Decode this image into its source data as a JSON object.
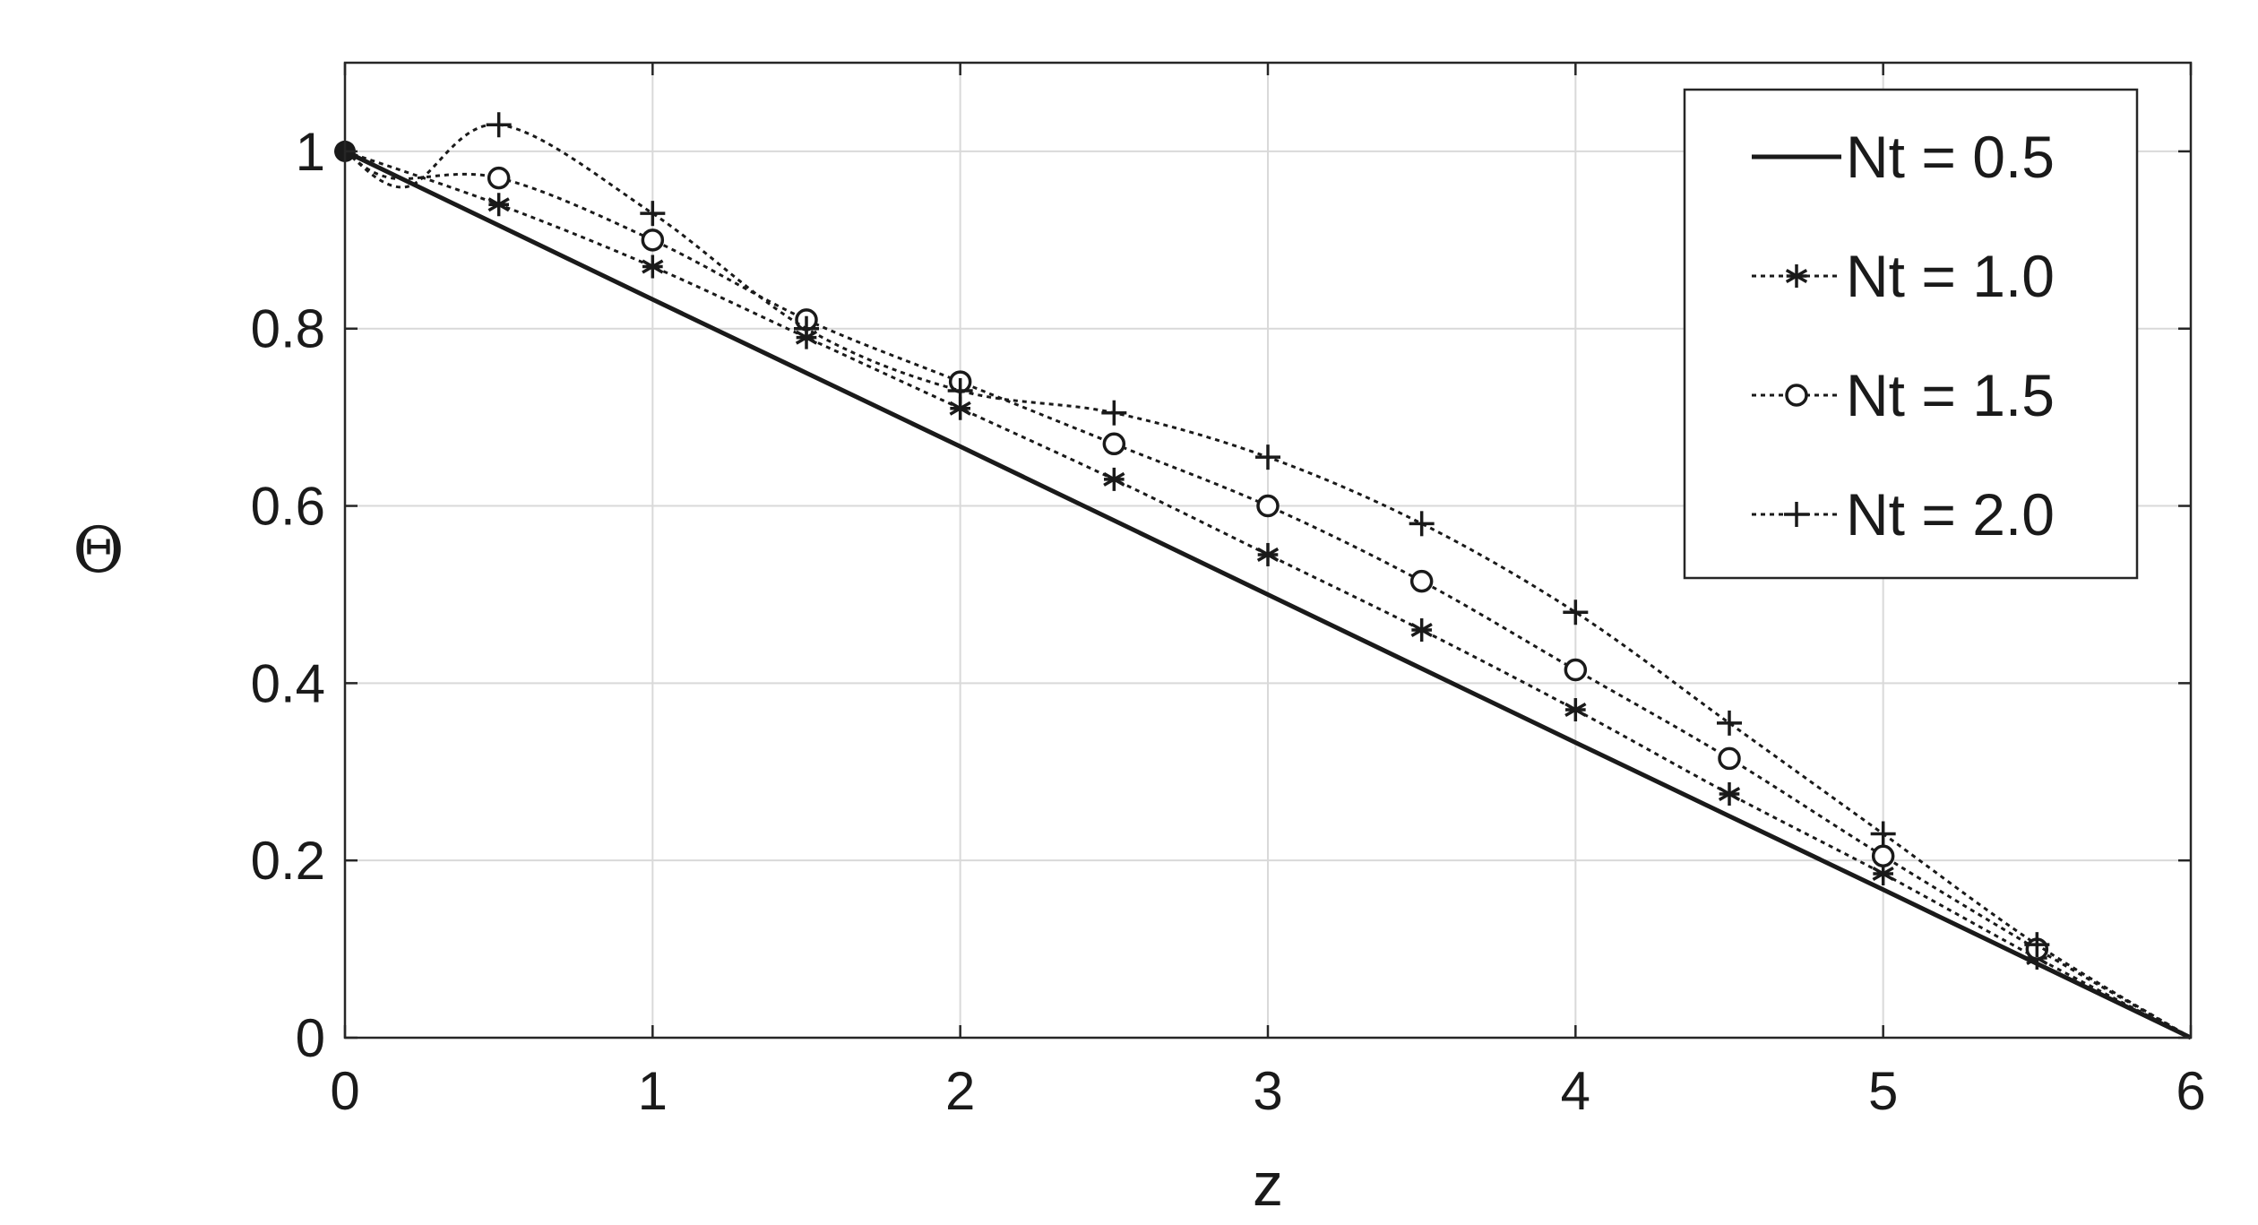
{
  "chart_data": {
    "type": "line",
    "xlabel": "z",
    "ylabel": "Θ",
    "xlim": [
      0,
      6
    ],
    "ylim": [
      0,
      1.1
    ],
    "xticks": [
      "0",
      "1",
      "2",
      "3",
      "4",
      "5",
      "6"
    ],
    "yticks": [
      "0",
      "0.2",
      "0.4",
      "0.6",
      "0.8",
      "1"
    ],
    "grid": true,
    "legend_position": "top-right",
    "series": [
      {
        "name": "Nt = 0.5",
        "marker": "none",
        "line": "solid",
        "x": [
          0,
          1,
          2,
          3,
          4,
          5,
          6
        ],
        "y": [
          1.0,
          0.833,
          0.667,
          0.5,
          0.333,
          0.167,
          0.0
        ],
        "marker_x": [],
        "marker_y": []
      },
      {
        "name": "Nt = 1.0",
        "marker": "asterisk",
        "line": "dotted",
        "x": [
          0,
          0.5,
          1.0,
          1.5,
          2.0,
          2.5,
          3.0,
          3.5,
          4.0,
          4.5,
          5.0,
          5.5,
          6.0
        ],
        "y": [
          1.0,
          0.94,
          0.87,
          0.79,
          0.71,
          0.63,
          0.545,
          0.46,
          0.37,
          0.275,
          0.185,
          0.09,
          0.0
        ],
        "marker_x": [
          0.5,
          1.0,
          1.5,
          2.0,
          2.5,
          3.0,
          3.5,
          4.0,
          4.5,
          5.0,
          5.5
        ],
        "marker_y": [
          0.94,
          0.87,
          0.79,
          0.71,
          0.63,
          0.545,
          0.46,
          0.37,
          0.275,
          0.185,
          0.09
        ]
      },
      {
        "name": "Nt = 1.5",
        "marker": "circle",
        "line": "dotted",
        "x": [
          0,
          0.15,
          0.5,
          1.0,
          1.5,
          2.0,
          2.5,
          3.0,
          3.5,
          4.0,
          4.5,
          5.0,
          5.5,
          6.0
        ],
        "y": [
          1.0,
          0.97,
          0.97,
          0.9,
          0.81,
          0.74,
          0.67,
          0.6,
          0.515,
          0.415,
          0.315,
          0.205,
          0.1,
          0.0
        ],
        "marker_x": [
          0.5,
          1.0,
          1.5,
          2.0,
          2.5,
          3.0,
          3.5,
          4.0,
          4.5,
          5.0,
          5.5
        ],
        "marker_y": [
          0.97,
          0.9,
          0.81,
          0.74,
          0.67,
          0.6,
          0.515,
          0.415,
          0.315,
          0.205,
          0.1
        ]
      },
      {
        "name": "Nt = 2.0",
        "marker": "plus",
        "line": "dotted",
        "x": [
          0,
          0.2,
          0.5,
          1.0,
          1.5,
          2.0,
          2.5,
          3.0,
          3.5,
          4.0,
          4.5,
          5.0,
          5.5,
          6.0
        ],
        "y": [
          1.0,
          0.96,
          1.03,
          0.93,
          0.8,
          0.73,
          0.705,
          0.655,
          0.58,
          0.48,
          0.355,
          0.23,
          0.105,
          0.0
        ],
        "marker_x": [
          0.5,
          1.0,
          1.5,
          2.0,
          2.5,
          3.0,
          3.5,
          4.0,
          4.5,
          5.0,
          5.5
        ],
        "marker_y": [
          1.03,
          0.93,
          0.8,
          0.73,
          0.705,
          0.655,
          0.58,
          0.48,
          0.355,
          0.23,
          0.105
        ]
      }
    ],
    "start_point": {
      "x": 0,
      "y": 1.0
    },
    "colors": {
      "line": "#1a1a1a",
      "grid": "#d9d9d9",
      "axes": "#262626"
    }
  }
}
